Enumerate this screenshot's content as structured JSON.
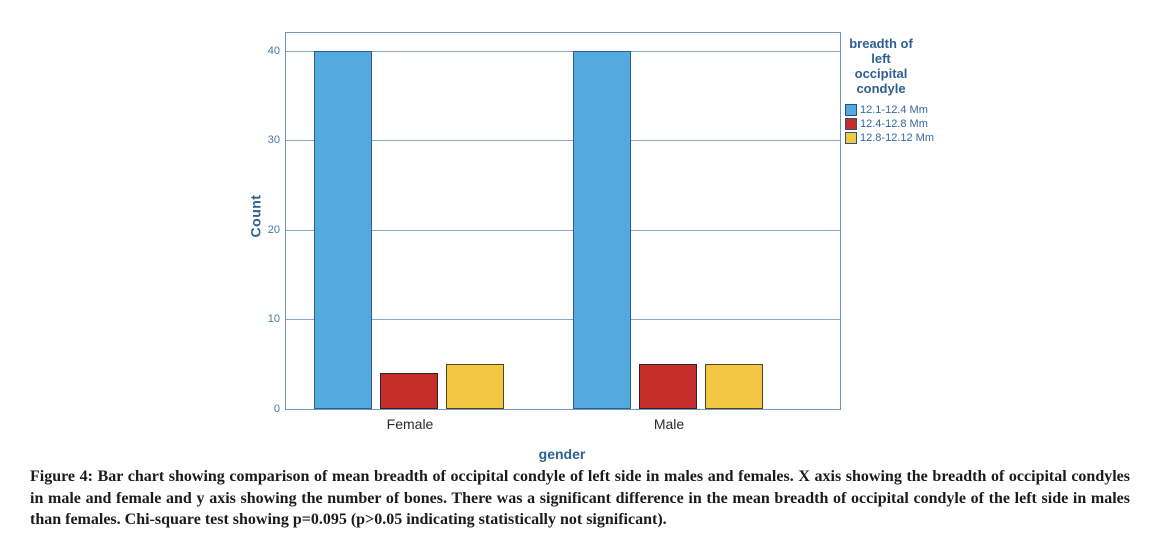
{
  "chart_data": {
    "type": "bar",
    "categories": [
      "Female",
      "Male"
    ],
    "series": [
      {
        "name": "12.1-12.4 Mm",
        "color": "#54a9df",
        "border": "#2e5f88",
        "values": [
          40,
          40
        ]
      },
      {
        "name": "12.4-12.8 Mm",
        "color": "#c62e2c",
        "border": "#33211f",
        "values": [
          4,
          5
        ]
      },
      {
        "name": "12.8-12.12 Mm",
        "color": "#f2c744",
        "border": "#55451f",
        "values": [
          5,
          5
        ]
      }
    ],
    "title": "",
    "xlabel": "gender",
    "ylabel": "Count",
    "ylim": [
      0,
      42
    ],
    "yticks": [
      0,
      10,
      20,
      30,
      40
    ],
    "grid": true,
    "legend_title": "breadth of left occipital condyle",
    "legend_position": "right",
    "axis_color": "#6f99c2",
    "gridline_color": "#87a8cc",
    "axis_label_color": "#2d5f94",
    "tick_label_color": "#4677a6"
  },
  "caption": {
    "text": "Figure 4: Bar chart showing comparison of mean breadth of occipital condyle of left side in males and females. X axis showing the breadth of occipital condyles in male and female and y axis showing the number of bones. There was a significant difference in the mean breadth of occipital condyle of the left side in males than females. Chi-square test showing p=0.095 (p>0.05 indicating statistically not significant)."
  }
}
